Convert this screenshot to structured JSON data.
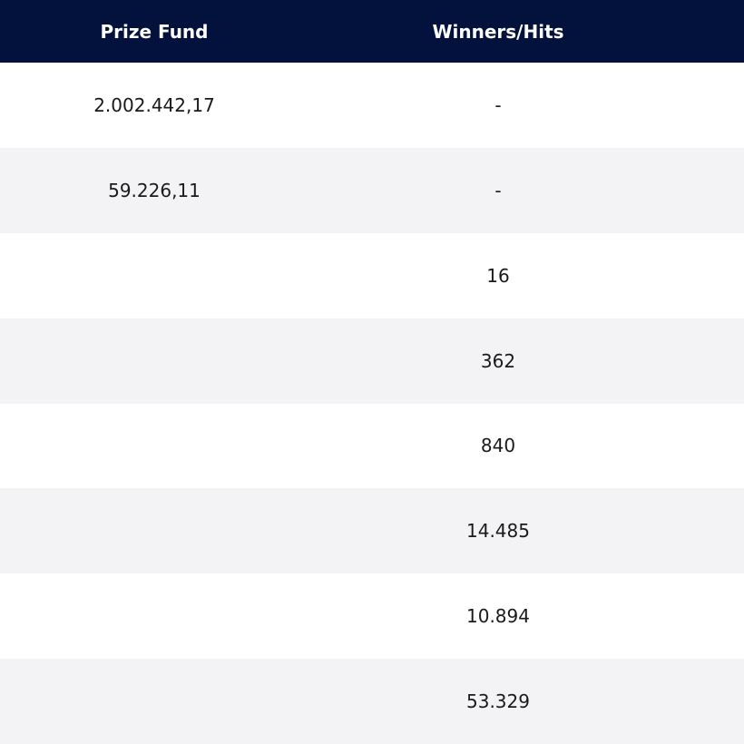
{
  "table": {
    "headers": {
      "prize_fund": "Prize Fund",
      "winners_hits": "Winners/Hits"
    },
    "rows": [
      {
        "prize_fund": "2.002.442,17",
        "winners_hits": "-"
      },
      {
        "prize_fund": "59.226,11",
        "winners_hits": "-"
      },
      {
        "prize_fund": "",
        "winners_hits": "16"
      },
      {
        "prize_fund": "",
        "winners_hits": "362"
      },
      {
        "prize_fund": "",
        "winners_hits": "840"
      },
      {
        "prize_fund": "",
        "winners_hits": "14.485"
      },
      {
        "prize_fund": "",
        "winners_hits": "10.894"
      },
      {
        "prize_fund": "",
        "winners_hits": "53.329"
      }
    ]
  },
  "colors": {
    "header_bg": "#03113d",
    "header_text": "#ffffff",
    "row_alt_bg": "#f3f3f6",
    "row_bg": "#ffffff"
  }
}
